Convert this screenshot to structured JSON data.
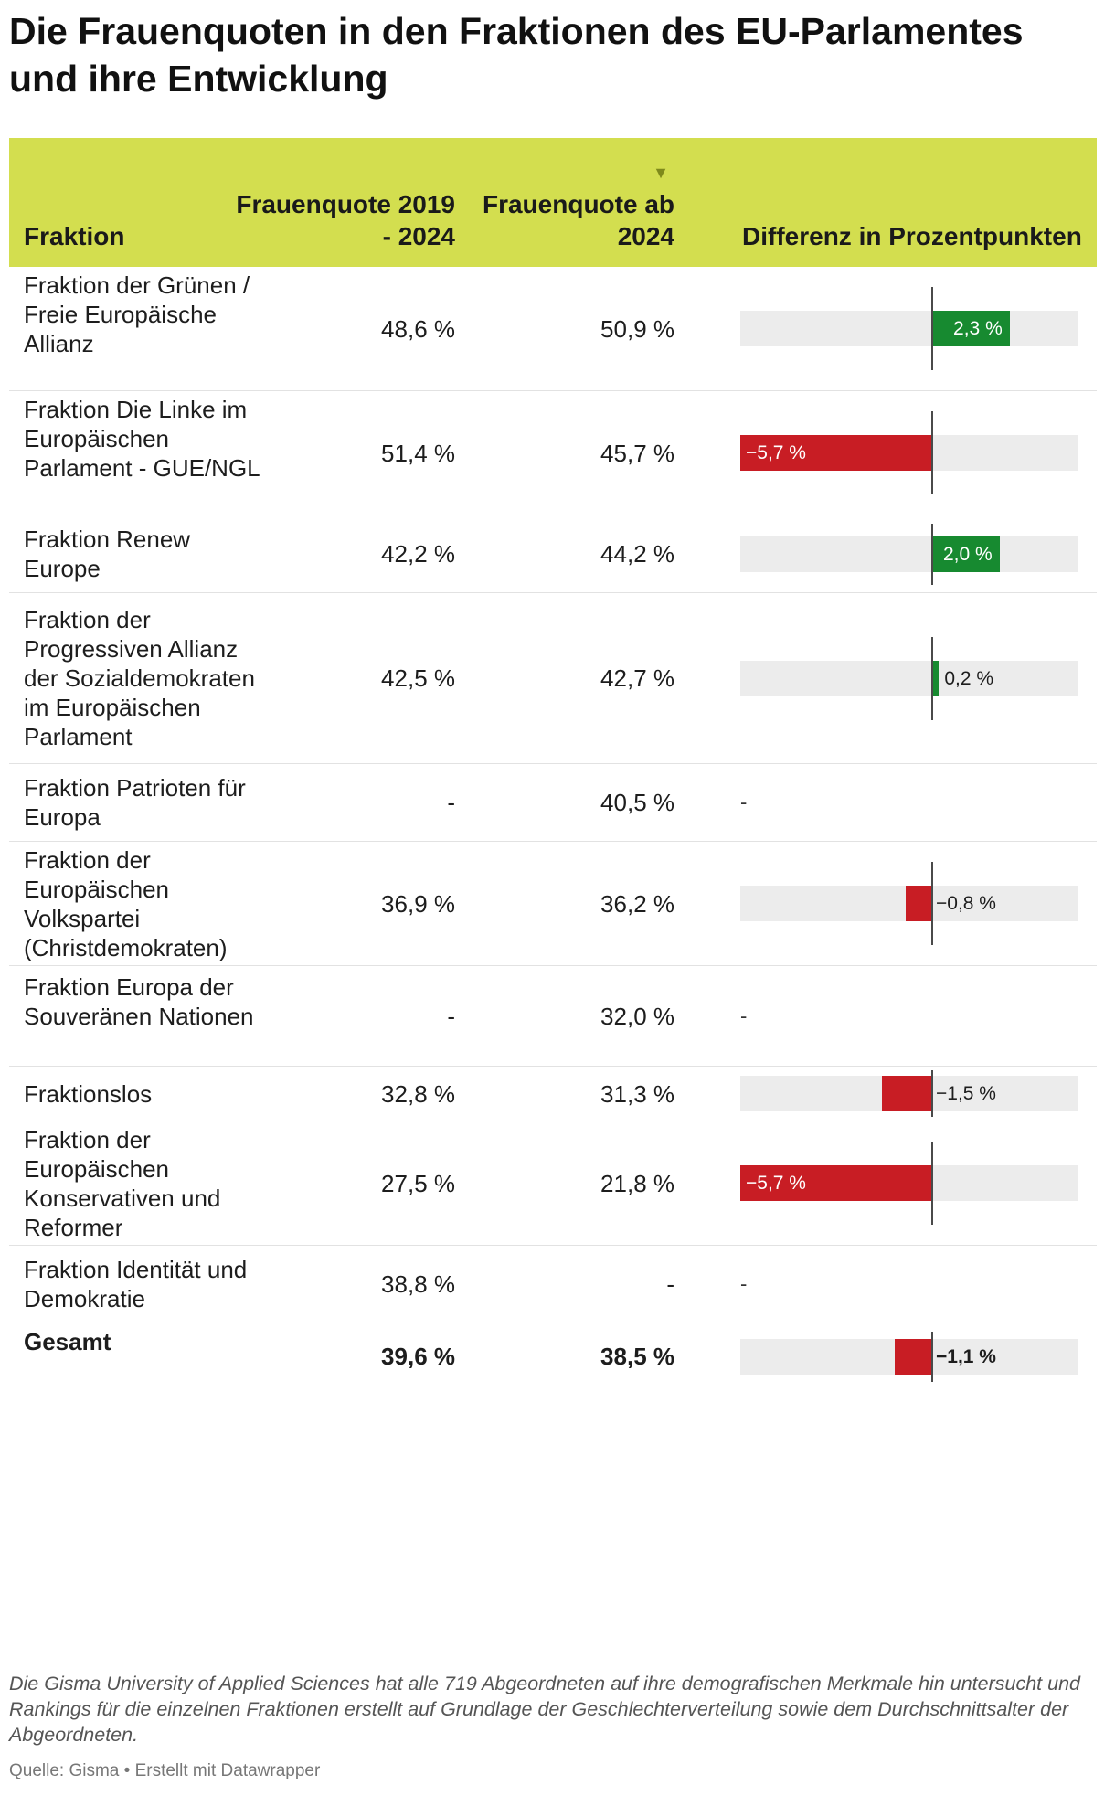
{
  "title": "Die Frauenquoten in den Fraktionen des EU-Parlamentes und ihre Entwicklung",
  "colors": {
    "header": "#d3de4f",
    "positive": "#178a30",
    "negative": "#c81d24",
    "bar_bg": "#ececec"
  },
  "header": {
    "fraktion": "Fraktion",
    "quote_2019_2024": "Frauenquote 2019 - 2024",
    "quote_ab_2024": "Frauenquote ab 2024",
    "differenz": "Differenz in Prozentpunkten",
    "sort_icon": "▼"
  },
  "chart_data": {
    "type": "table",
    "columns": [
      "Fraktion",
      "Frauenquote 2019 - 2024",
      "Frauenquote ab 2024",
      "Differenz in Prozentpunkten"
    ],
    "diff_range": [
      -5.7,
      2.3
    ],
    "rows": [
      {
        "name": "Fraktion der Grünen / Freie Europäische Allianz",
        "q19": "48,6 %",
        "q24": "50,9 %",
        "diff": 2.3,
        "diff_label": "2,3 %"
      },
      {
        "name": "Fraktion Die Linke im Europäischen Parlament - GUE/NGL",
        "q19": "51,4 %",
        "q24": "45,7 %",
        "diff": -5.7,
        "diff_label": "−5,7 %"
      },
      {
        "name": "Fraktion Renew Europe",
        "q19": "42,2 %",
        "q24": "44,2 %",
        "diff": 2.0,
        "diff_label": "2,0 %"
      },
      {
        "name": "Fraktion der Progressiven Allianz der Sozialdemokraten im Europäischen Parlament",
        "q19": "42,5 %",
        "q24": "42,7 %",
        "diff": 0.2,
        "diff_label": "0,2 %"
      },
      {
        "name": "Fraktion Patrioten für Europa",
        "q19": "-",
        "q24": "40,5 %",
        "diff": null,
        "diff_label": "-"
      },
      {
        "name": "Fraktion der Europäischen Volkspartei (Christdemokraten)",
        "q19": "36,9 %",
        "q24": "36,2 %",
        "diff": -0.8,
        "diff_label": "−0,8 %"
      },
      {
        "name": "Fraktion Europa der Souveränen Nationen",
        "q19": "-",
        "q24": "32,0 %",
        "diff": null,
        "diff_label": "-"
      },
      {
        "name": "Fraktionslos",
        "q19": "32,8 %",
        "q24": "31,3 %",
        "diff": -1.5,
        "diff_label": "−1,5 %"
      },
      {
        "name": "Fraktion der Europäischen Konservativen und Reformer",
        "q19": "27,5 %",
        "q24": "21,8 %",
        "diff": -5.7,
        "diff_label": "−5,7 %"
      },
      {
        "name": "Fraktion Identität und Demokratie",
        "q19": "38,8 %",
        "q24": "-",
        "diff": null,
        "diff_label": "-"
      },
      {
        "name": "Gesamt",
        "q19": "39,6 %",
        "q24": "38,5 %",
        "diff": -1.1,
        "diff_label": "−1,1 %",
        "bold": true
      }
    ]
  },
  "notes": "Die Gisma University of Applied Sciences hat alle 719 Abgeordneten auf ihre demografischen Merkmale hin untersucht und Rankings für die einzelnen Fraktionen erstellt auf Grundlage der Geschlechterverteilung sowie dem Durchschnittsalter der Abgeordneten.",
  "source": "Quelle: Gisma • Erstellt mit Datawrapper"
}
